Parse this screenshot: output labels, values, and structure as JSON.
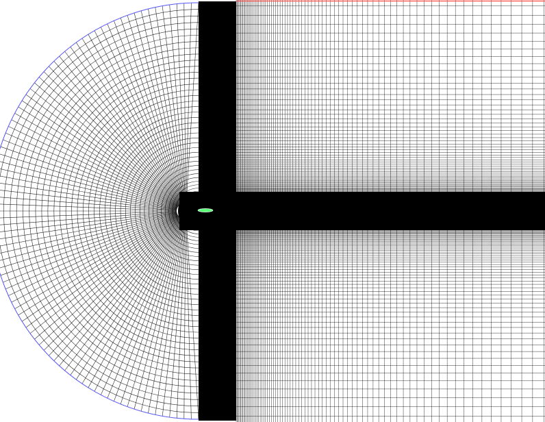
{
  "view": {
    "background": "#ffffff",
    "mesh_line_color": "#000000",
    "farfield_boundary_color": "#5a5aff",
    "top_boundary_color": "#ff4a4a",
    "airfoil_fill": "#5cff7a"
  },
  "mesh": {
    "regions": [
      "c-grid-farfield",
      "dense-vertical-band",
      "wake-band",
      "rectangular-domain",
      "airfoil"
    ]
  }
}
